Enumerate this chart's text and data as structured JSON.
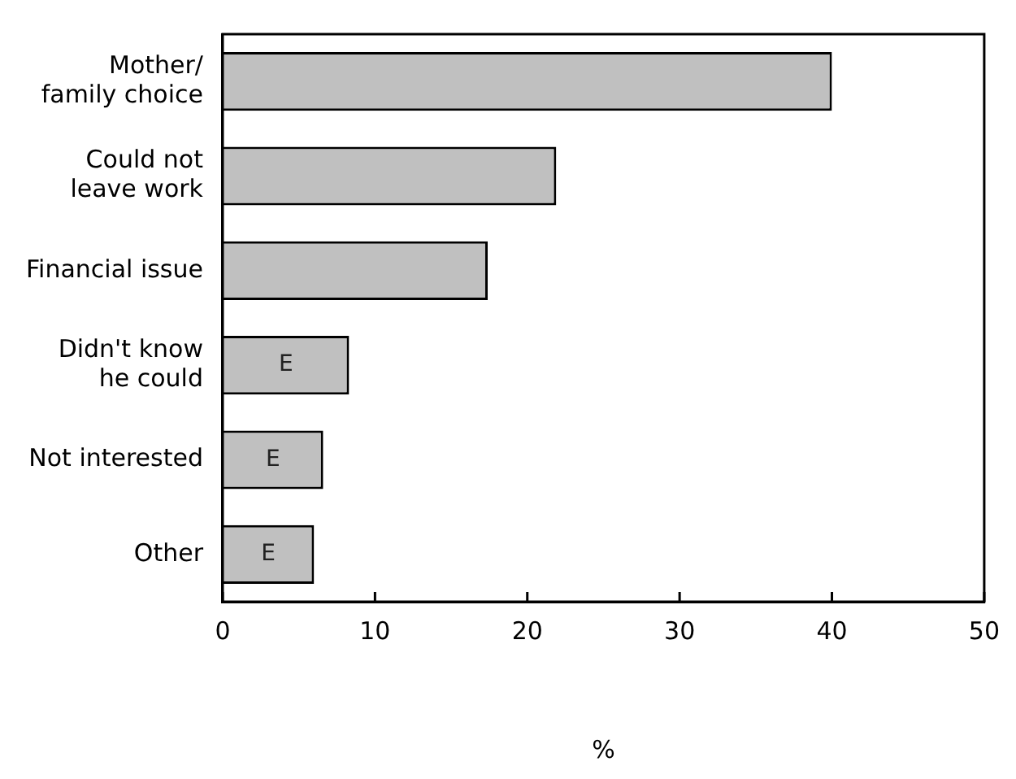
{
  "chart_data": {
    "type": "bar",
    "orientation": "horizontal",
    "xlabel": "%",
    "categories": [
      "Mother/\nfamily choice",
      "Could not\nleave work",
      "Financial issue",
      "Didn't know\nhe could",
      "Not interested",
      "Other"
    ],
    "values": [
      40,
      21.9,
      17.4,
      8.3,
      6.6,
      6.0
    ],
    "value_labels": [
      null,
      null,
      null,
      "E",
      "E",
      "E"
    ],
    "color": "#c0c0c0",
    "xlim": [
      0,
      50
    ],
    "xticks": [
      0,
      10,
      20,
      30,
      40,
      50
    ],
    "grid": false,
    "legend": false
  }
}
